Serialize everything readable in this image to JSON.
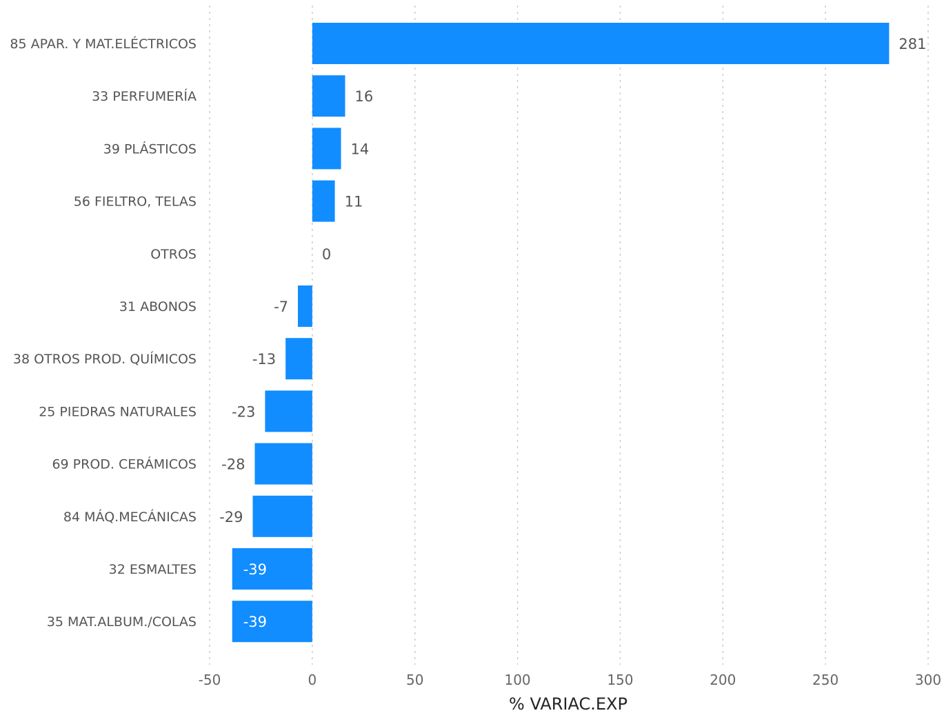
{
  "chart_data": {
    "type": "bar",
    "orientation": "horizontal",
    "categories": [
      "85 APAR. Y MAT.ELÉCTRICOS",
      "33 PERFUMERÍA",
      "39 PLÁSTICOS",
      "56 FIELTRO, TELAS",
      "OTROS",
      "31 ABONOS",
      "38 OTROS PROD. QUÍMICOS",
      "25 PIEDRAS NATURALES",
      "69 PROD. CERÁMICOS",
      "84 MÁQ.MECÁNICAS",
      "32 ESMALTES",
      "35 MAT.ALBUM./COLAS"
    ],
    "values": [
      281,
      16,
      14,
      11,
      0,
      -7,
      -13,
      -23,
      -28,
      -29,
      -39,
      -39
    ],
    "data_labels": [
      "281",
      "16",
      "14",
      "11",
      "0",
      "-7",
      "-13",
      "-23",
      "-28",
      "-29",
      "-39",
      "-39"
    ],
    "xlabel": "% VARIAC.EXP",
    "ylabel": "",
    "xlim": [
      -50,
      300
    ],
    "xticks": [
      -50,
      0,
      50,
      100,
      150,
      200,
      250,
      300
    ],
    "xtick_labels": [
      "-50",
      "0",
      "50",
      "100",
      "150",
      "200",
      "250",
      "300"
    ],
    "grid": "vertical dotted",
    "legend": "none",
    "bar_color": "#118DFF",
    "inside_label_color": "#FFFFFF"
  }
}
